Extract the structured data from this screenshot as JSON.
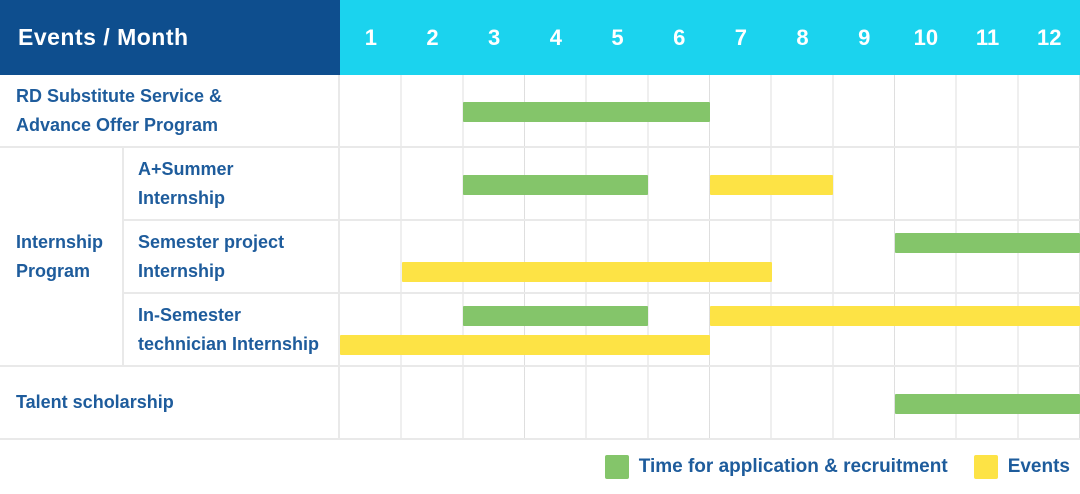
{
  "title": "Events / Month",
  "colors": {
    "header_bg": "#0e4e8e",
    "months_bg": "#1bd3ee",
    "application": "#84c56a",
    "event": "#fde345",
    "label_text": "#1e5c9c"
  },
  "legend": {
    "items": [
      {
        "type": "application",
        "label": "Time for application & recruitment"
      },
      {
        "type": "event",
        "label": "Events"
      }
    ]
  },
  "chart_data": {
    "type": "bar",
    "subtype": "gantt-timeline",
    "title": "Events / Month",
    "x_unit": "month",
    "x_range": [
      1,
      12
    ],
    "grid": true,
    "legend_position": "bottom-right",
    "months": [
      "1",
      "2",
      "3",
      "4",
      "5",
      "6",
      "7",
      "8",
      "9",
      "10",
      "11",
      "12"
    ],
    "groups": [
      {
        "label": "Internship\nProgram",
        "row_indexes": [
          1,
          2,
          3
        ]
      }
    ],
    "rows": [
      {
        "label": "RD Substitute Service &\nAdvance Offer Program",
        "bars": [
          {
            "type": "application",
            "start_month": 3,
            "end_month": 6,
            "line": "center"
          }
        ]
      },
      {
        "label": "A+Summer\nInternship",
        "bars": [
          {
            "type": "application",
            "start_month": 3,
            "end_month": 5,
            "line": "center"
          },
          {
            "type": "event",
            "start_month": 7,
            "end_month": 8,
            "line": "center"
          }
        ]
      },
      {
        "label": "Semester project\nInternship",
        "bars": [
          {
            "type": "application",
            "start_month": 10,
            "end_month": 12,
            "line": "top"
          },
          {
            "type": "event",
            "start_month": 2,
            "end_month": 7,
            "line": "bottom"
          }
        ]
      },
      {
        "label": "In-Semester\ntechnician Internship",
        "bars": [
          {
            "type": "application",
            "start_month": 3,
            "end_month": 5,
            "line": "top"
          },
          {
            "type": "event",
            "start_month": 7,
            "end_month": 12,
            "line": "top"
          },
          {
            "type": "event",
            "start_month": 1,
            "end_month": 6,
            "line": "bottom"
          }
        ]
      },
      {
        "label": "Talent scholarship",
        "bars": [
          {
            "type": "application",
            "start_month": 10,
            "end_month": 12,
            "line": "center"
          }
        ]
      }
    ]
  }
}
